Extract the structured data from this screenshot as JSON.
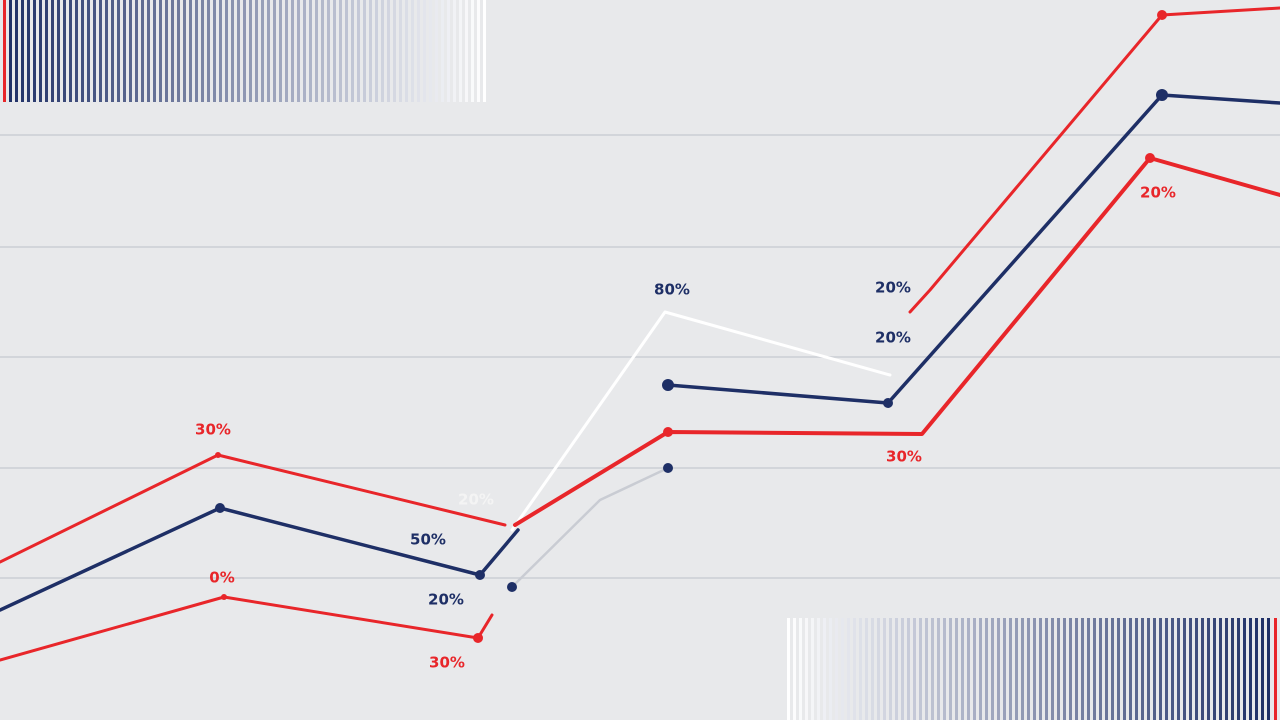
{
  "labels": [
    "30%",
    "0%",
    "50%",
    "20%",
    "30%",
    "20%",
    "80%",
    "20%",
    "20%",
    "30%",
    "20%"
  ]
}
